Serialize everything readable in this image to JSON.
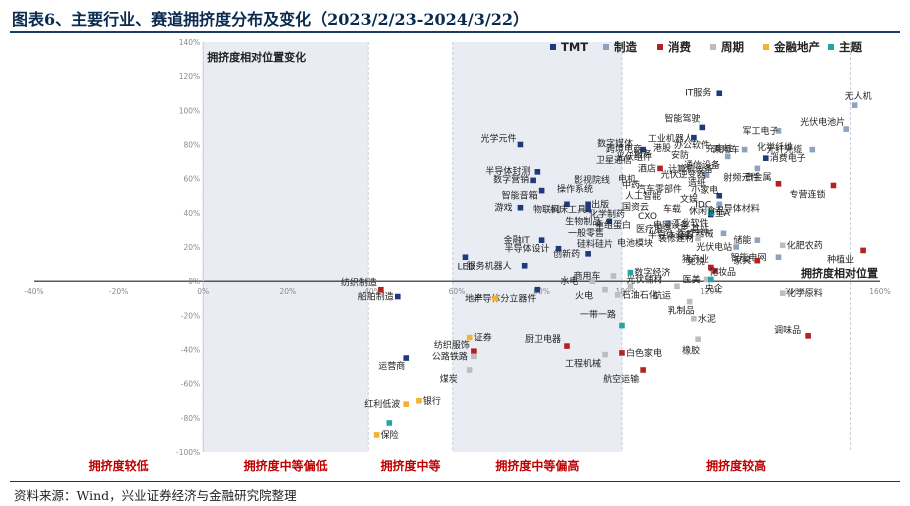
{
  "header": {
    "title": "图表6、主要行业、赛道拥挤度分布及变化（2023/2/23-2024/3/22）"
  },
  "footer": {
    "source": "资料来源：Wind，兴业证券经济与金融研究院整理"
  },
  "chart_data": {
    "type": "scatter",
    "title": "图表6、主要行业、赛道拥挤度分布及变化（2023/2/23-2024/3/22）",
    "xlabel": "拥挤度相对位置",
    "ylabel": "拥挤度相对位置变化",
    "xlim": [
      -40,
      160
    ],
    "ylim": [
      -100,
      140
    ],
    "x_ticks": [
      "-40%",
      "-20%",
      "0%",
      "20%",
      "40%",
      "60%",
      "80%",
      "100%",
      "120%",
      "140%",
      "160%"
    ],
    "y_ticks": [
      "140%",
      "120%",
      "100%",
      "80%",
      "60%",
      "40%",
      "20%",
      "0%",
      "-20%",
      "-40%",
      "-60%",
      "-80%",
      "-100%"
    ],
    "legend_position": "top-right",
    "colors": {
      "TMT": "#1f3a7a",
      "制造": "#8fa3bf",
      "消费": "#b22222",
      "周期": "#bdbdbd",
      "金融地产": "#f2b233",
      "主题": "#26a3a3"
    },
    "series": [
      {
        "name": "TMT",
        "points": [
          {
            "label": "IT服务",
            "x": 122,
            "y": 110
          },
          {
            "label": "智能驾驶",
            "x": 118,
            "y": 90
          },
          {
            "label": "光学元件",
            "x": 75,
            "y": 80
          },
          {
            "label": "数字媒体",
            "x": 104,
            "y": 77
          },
          {
            "label": "工业机器人",
            "x": 116,
            "y": 84
          },
          {
            "label": "半导体封测",
            "x": 79,
            "y": 64
          },
          {
            "label": "数字营销",
            "x": 78,
            "y": 59
          },
          {
            "label": "智能音箱",
            "x": 80,
            "y": 53
          },
          {
            "label": "物联网",
            "x": 86,
            "y": 45
          },
          {
            "label": "出版",
            "x": 91,
            "y": 45
          },
          {
            "label": "游戏",
            "x": 75,
            "y": 43
          },
          {
            "label": "机床工具",
            "x": 91,
            "y": 42
          },
          {
            "label": "生物制品",
            "x": 96,
            "y": 35
          },
          {
            "label": "金融IT",
            "x": 80,
            "y": 24
          },
          {
            "label": "半导体设计",
            "x": 84,
            "y": 19
          },
          {
            "label": "创新药",
            "x": 91,
            "y": 16
          },
          {
            "label": "服务机器人",
            "x": 76,
            "y": 9
          },
          {
            "label": "LED",
            "x": 62,
            "y": 14
          },
          {
            "label": "半导体分立器件",
            "x": 79,
            "y": -5
          },
          {
            "label": "船舶制造",
            "x": 46,
            "y": -9
          },
          {
            "label": "运营商",
            "x": 48,
            "y": -45
          },
          {
            "label": "小家电",
            "x": 122,
            "y": 50
          },
          {
            "label": "消费电子",
            "x": 133,
            "y": 72
          },
          {
            "label": "半导体材料",
            "x": 120,
            "y": 39
          }
        ]
      },
      {
        "name": "制造",
        "points": [
          {
            "label": "无人机",
            "x": 154,
            "y": 103
          },
          {
            "label": "军工电子",
            "x": 136,
            "y": 88
          },
          {
            "label": "光伏电池片",
            "x": 152,
            "y": 89
          },
          {
            "label": "充电桩",
            "x": 124,
            "y": 73
          },
          {
            "label": "乘用车",
            "x": 128,
            "y": 77
          },
          {
            "label": "光纤光缆",
            "x": 144,
            "y": 77
          },
          {
            "label": "射频元件",
            "x": 131,
            "y": 66
          },
          {
            "label": "光伏逆变器",
            "x": 119,
            "y": 62
          },
          {
            "label": "IDC",
            "x": 122,
            "y": 45
          },
          {
            "label": "智能电网",
            "x": 136,
            "y": 14
          },
          {
            "label": "光伏电站",
            "x": 126,
            "y": 20
          },
          {
            "label": "储能",
            "x": 131,
            "y": 24
          },
          {
            "label": "工业软件",
            "x": 110,
            "y": 34
          },
          {
            "label": "医疗器械",
            "x": 123,
            "y": 28
          }
        ]
      },
      {
        "name": "消费",
        "points": [
          {
            "label": "种植业",
            "x": 156,
            "y": 18
          },
          {
            "label": "专营连锁",
            "x": 149,
            "y": 56
          },
          {
            "label": "家具",
            "x": 131,
            "y": 12
          },
          {
            "label": "免税",
            "x": 120,
            "y": 8
          },
          {
            "label": "化妆品",
            "x": 121,
            "y": 6
          },
          {
            "label": "调味品",
            "x": 143,
            "y": -32
          },
          {
            "label": "白色家电",
            "x": 99,
            "y": -42
          },
          {
            "label": "纺织制造",
            "x": 42,
            "y": -5
          },
          {
            "label": "纺织服饰",
            "x": 64,
            "y": -41
          },
          {
            "label": "厨卫电器",
            "x": 86,
            "y": -38
          },
          {
            "label": "航空运输",
            "x": 104,
            "y": -52
          },
          {
            "label": "酒店",
            "x": 108,
            "y": 66
          },
          {
            "label": "贵金属",
            "x": 136,
            "y": 57
          }
        ]
      },
      {
        "name": "周期",
        "points": [
          {
            "label": "化肥农药",
            "x": 137,
            "y": 21
          },
          {
            "label": "化学原料",
            "x": 137,
            "y": -7
          },
          {
            "label": "乳制品",
            "x": 115,
            "y": -12
          },
          {
            "label": "水泥",
            "x": 116,
            "y": -22
          },
          {
            "label": "橡胶",
            "x": 117,
            "y": -34
          },
          {
            "label": "公路铁路",
            "x": 64,
            "y": -44
          },
          {
            "label": "煤炭",
            "x": 63,
            "y": -52
          },
          {
            "label": "水电",
            "x": 92,
            "y": 0
          },
          {
            "label": "火电",
            "x": 95,
            "y": -5
          },
          {
            "label": "石油石化",
            "x": 98,
            "y": -8
          },
          {
            "label": "光伏辅材",
            "x": 101,
            "y": -3
          },
          {
            "label": "医美",
            "x": 119,
            "y": 1
          },
          {
            "label": "商用车",
            "x": 97,
            "y": 3
          },
          {
            "label": "航运",
            "x": 112,
            "y": -3
          },
          {
            "label": "装修建材",
            "x": 117,
            "y": 25
          },
          {
            "label": "工程机械",
            "x": 95,
            "y": -43
          }
        ]
      },
      {
        "name": "金融地产",
        "points": [
          {
            "label": "地产",
            "x": 69,
            "y": -10
          },
          {
            "label": "证券",
            "x": 63,
            "y": -33
          },
          {
            "label": "银行",
            "x": 51,
            "y": -70
          },
          {
            "label": "红利低波",
            "x": 48,
            "y": -72
          },
          {
            "label": "保险",
            "x": 41,
            "y": -90
          }
        ]
      },
      {
        "name": "主题",
        "points": [
          {
            "label": "全A",
            "x": 120,
            "y": 40
          },
          {
            "label": "一带一路",
            "x": 99,
            "y": -26
          },
          {
            "label": "数字经济",
            "x": 101,
            "y": 5
          },
          {
            "label": "央企",
            "x": 120,
            "y": 1
          },
          {
            "label": "保险",
            "x": 44,
            "y": -83
          }
        ]
      }
    ],
    "bands": [
      {
        "label": "拥挤度较低",
        "from": -40,
        "to": 0
      },
      {
        "label": "拥挤度中等偏低",
        "from": 0,
        "to": 39
      },
      {
        "label": "拥挤度中等",
        "from": 39,
        "to": 59
      },
      {
        "label": "拥挤度中等偏高",
        "from": 59,
        "to": 99
      },
      {
        "label": "拥挤度较高",
        "from": 99,
        "to": 160
      }
    ],
    "cluster_labels": [
      "操作系统",
      "半导体设备",
      "计算机设备",
      "卫星通信",
      "跨境电商",
      "办公软件",
      "安防",
      "国资云",
      "化学制药",
      "人工智能",
      "重组蛋白",
      "中药",
      "影视院线",
      "汽车零部件",
      "化学纤维",
      "文娱",
      "造纸",
      "电机",
      "通信设备",
      "一般零售",
      "硅料硅片",
      "电池模块",
      "CXO",
      "港股",
      "光伏组件",
      "猪产业",
      "休闲食品",
      "医疗服务",
      "服务",
      "车载",
      "基站",
      "电网设备"
    ]
  }
}
